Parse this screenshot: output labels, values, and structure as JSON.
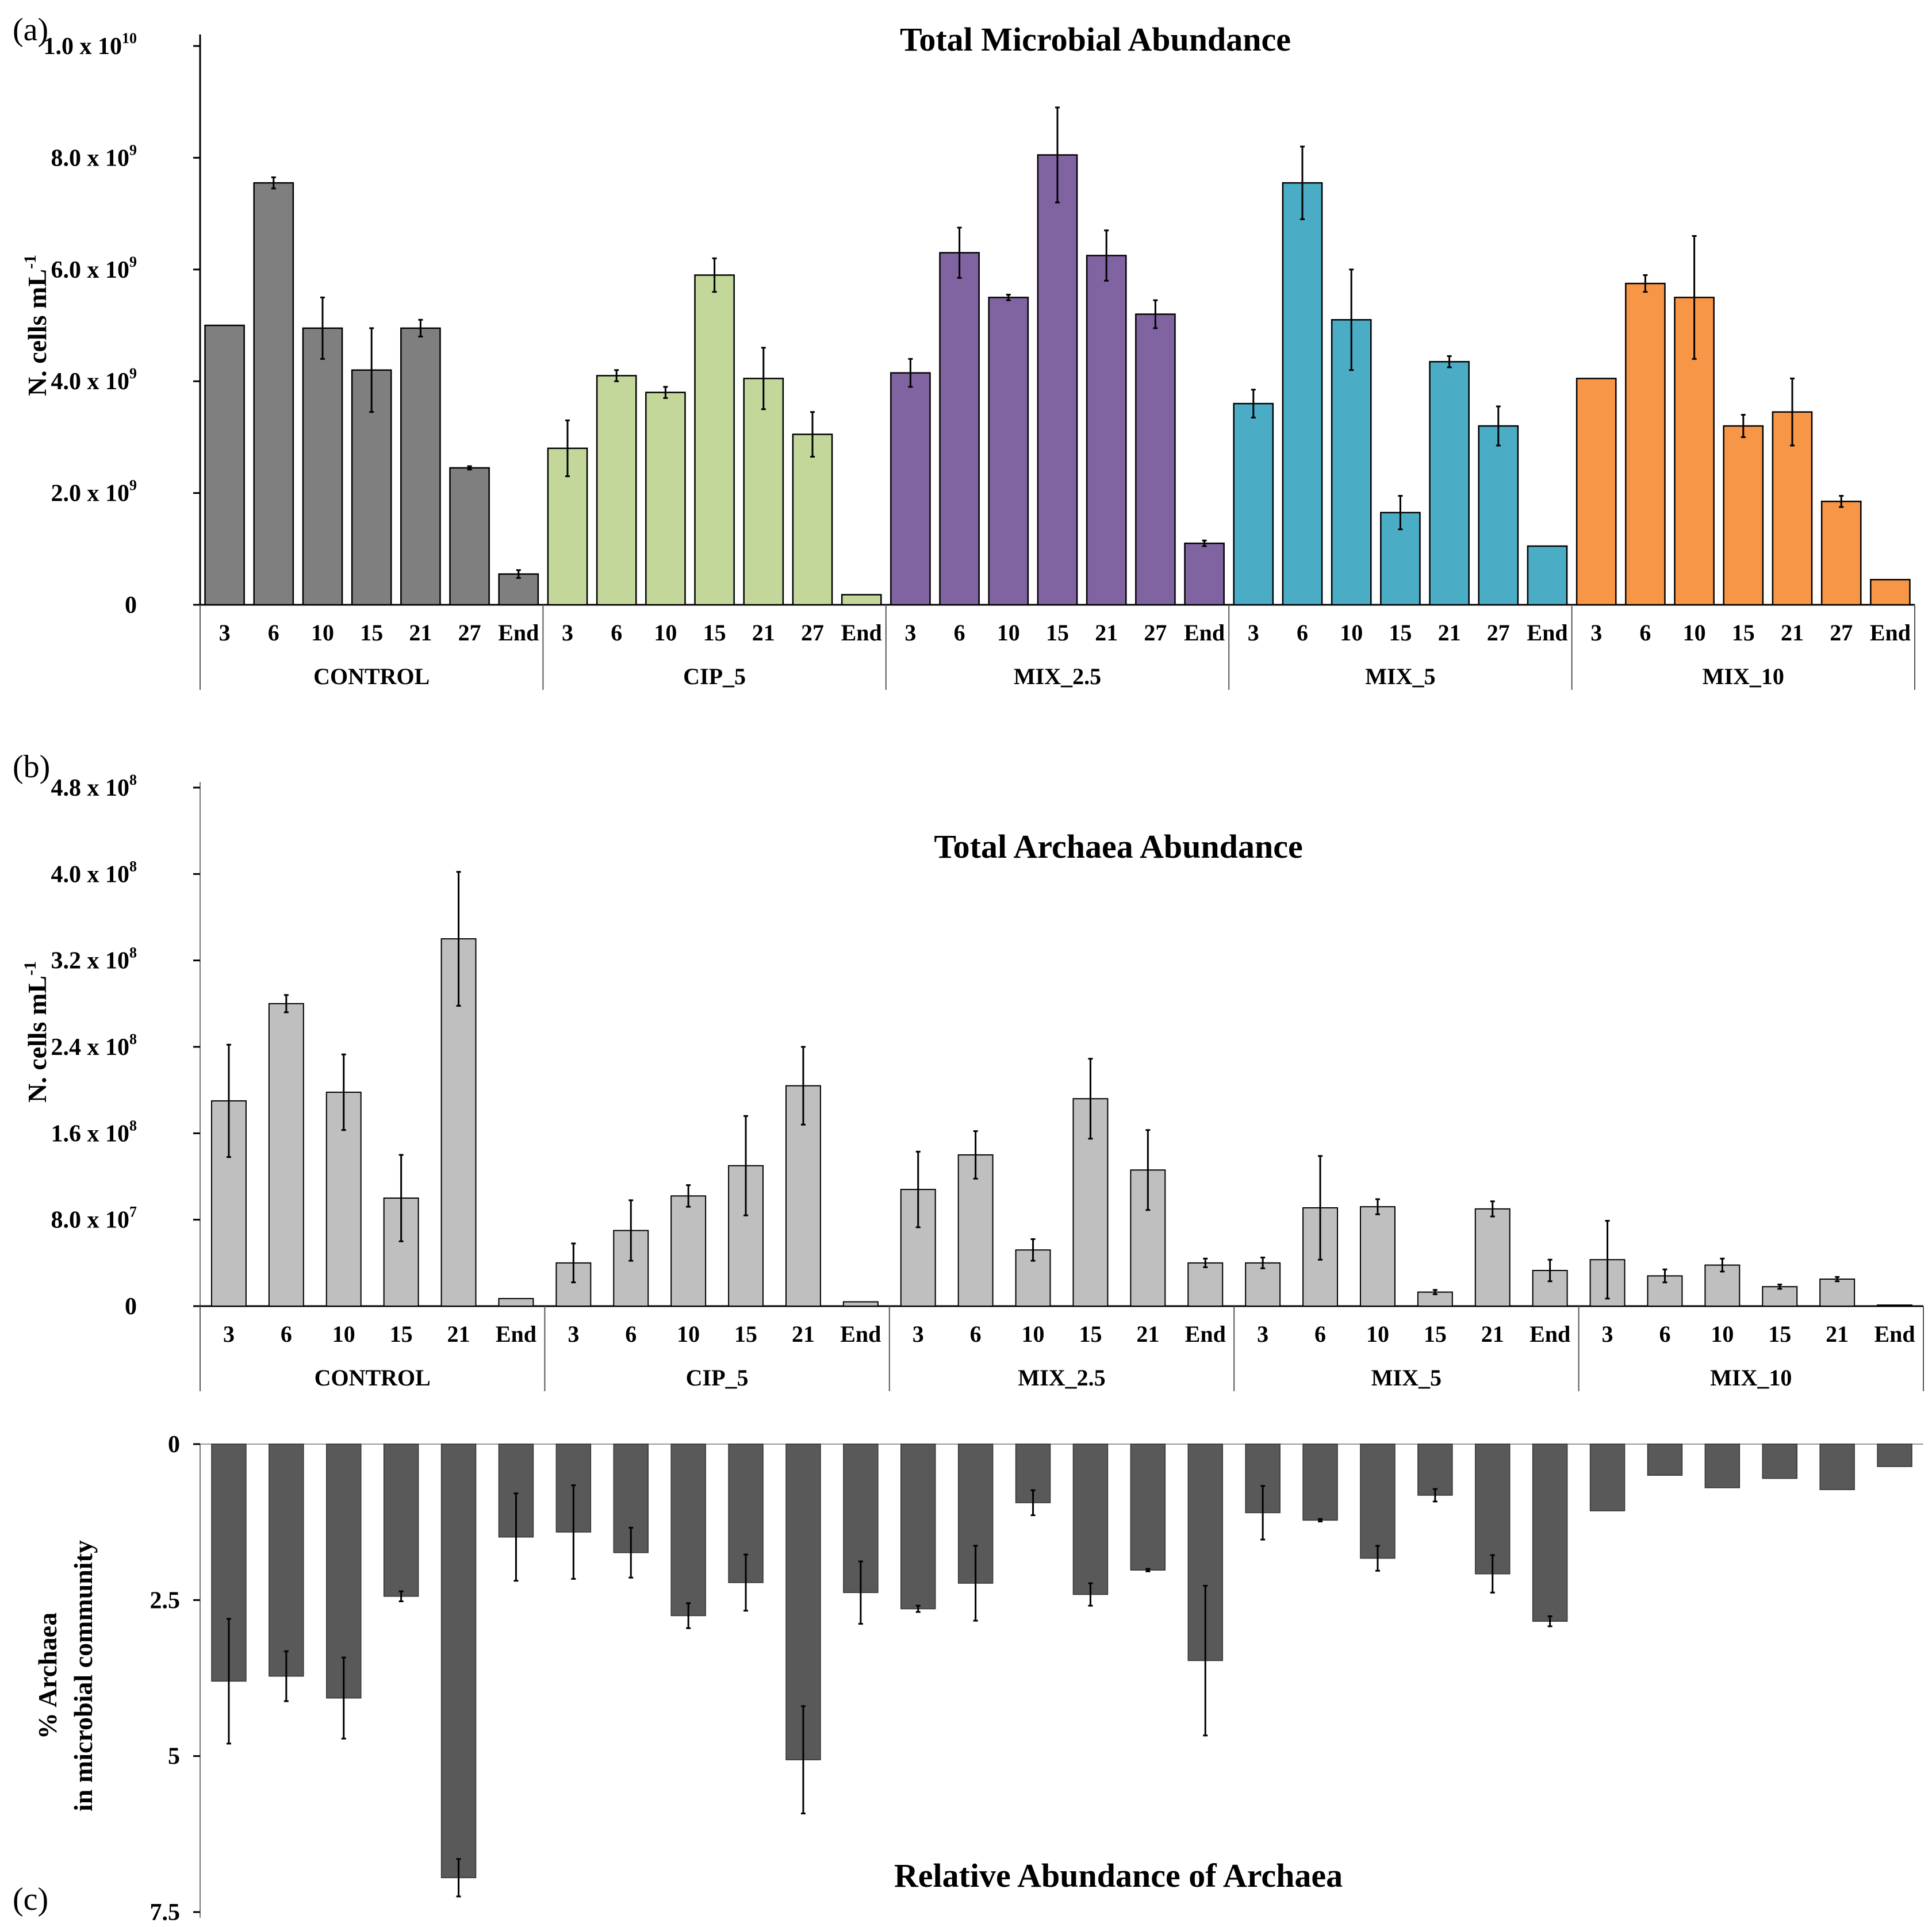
{
  "chart_data": [
    {
      "panel_label": "(a)",
      "type": "bar",
      "title": "Total Microbial Abundance",
      "ylabel": "N. cells mL-1",
      "ylabel_base": "N. cells mL",
      "ylabel_sup": "-1",
      "ylim": [
        0,
        10000000000.0
      ],
      "y_ticks": [
        {
          "value": 0,
          "text": "0",
          "sup": ""
        },
        {
          "value": 2000000000.0,
          "text": "2.0 x 10",
          "sup": "9"
        },
        {
          "value": 4000000000.0,
          "text": "4.0 x 10",
          "sup": "9"
        },
        {
          "value": 6000000000.0,
          "text": "6.0 x 10",
          "sup": "9"
        },
        {
          "value": 8000000000.0,
          "text": "8.0 x 10",
          "sup": "9"
        },
        {
          "value": 10000000000.0,
          "text": "1.0 x 10",
          "sup": "10"
        }
      ],
      "groups": [
        {
          "name": "CONTROL",
          "color": "#7f7f7f",
          "categories": [
            "3",
            "6",
            "10",
            "15",
            "21",
            "27",
            "End"
          ],
          "values": [
            5000000000.0,
            7550000000.0,
            4950000000.0,
            4200000000.0,
            4950000000.0,
            2450000000.0,
            550000000.0
          ],
          "errors": [
            0.0,
            100000000.0,
            550000000.0,
            750000000.0,
            150000000.0,
            30000000.0,
            70000000.0
          ]
        },
        {
          "name": "CIP_5",
          "color": "#c4d79b",
          "categories": [
            "3",
            "6",
            "10",
            "15",
            "21",
            "27",
            "End"
          ],
          "values": [
            2800000000.0,
            4100000000.0,
            3800000000.0,
            5900000000.0,
            4050000000.0,
            3050000000.0,
            180000000.0
          ],
          "errors": [
            500000000.0,
            100000000.0,
            100000000.0,
            300000000.0,
            550000000.0,
            400000000.0,
            0.0
          ]
        },
        {
          "name": "MIX_2.5",
          "color": "#8064a2",
          "categories": [
            "3",
            "6",
            "10",
            "15",
            "21",
            "27",
            "End"
          ],
          "values": [
            4150000000.0,
            6300000000.0,
            5500000000.0,
            8050000000.0,
            6250000000.0,
            5200000000.0,
            1100000000.0
          ],
          "errors": [
            250000000.0,
            450000000.0,
            50000000.0,
            850000000.0,
            450000000.0,
            250000000.0,
            50000000.0
          ]
        },
        {
          "name": "MIX_5",
          "color": "#4bacc6",
          "categories": [
            "3",
            "6",
            "10",
            "15",
            "21",
            "27",
            "End"
          ],
          "values": [
            3600000000.0,
            7550000000.0,
            5100000000.0,
            1650000000.0,
            4350000000.0,
            3200000000.0,
            1050000000.0
          ],
          "errors": [
            250000000.0,
            650000000.0,
            900000000.0,
            300000000.0,
            100000000.0,
            350000000.0,
            0.0
          ]
        },
        {
          "name": "MIX_10",
          "color": "#f79646",
          "categories": [
            "3",
            "6",
            "10",
            "15",
            "21",
            "27",
            "End"
          ],
          "values": [
            4050000000.0,
            5750000000.0,
            5500000000.0,
            3200000000.0,
            3450000000.0,
            1850000000.0,
            450000000.0
          ],
          "errors": [
            0.0,
            150000000.0,
            1100000000.0,
            200000000.0,
            600000000.0,
            100000000.0,
            0.0
          ]
        }
      ]
    },
    {
      "panel_label": "(b)",
      "type": "bar",
      "title": "Total Archaea Abundance",
      "ylabel": "N. cells mL-1",
      "ylabel_base": "N. cells mL",
      "ylabel_sup": "-1",
      "ylim": [
        0,
        480000000.0
      ],
      "y_ticks": [
        {
          "value": 0,
          "text": "0",
          "sup": ""
        },
        {
          "value": 80000000.0,
          "text": "8.0 x 10",
          "sup": "7"
        },
        {
          "value": 160000000.0,
          "text": "1.6 x 10",
          "sup": "8"
        },
        {
          "value": 240000000.0,
          "text": "2.4 x 10",
          "sup": "8"
        },
        {
          "value": 320000000.0,
          "text": "3.2 x 10",
          "sup": "8"
        },
        {
          "value": 400000000.0,
          "text": "4.0 x 10",
          "sup": "8"
        },
        {
          "value": 480000000.0,
          "text": "4.8 x 10",
          "sup": "8"
        }
      ],
      "bar_color": "#bfbfbf",
      "groups": [
        {
          "name": "CONTROL",
          "categories": [
            "3",
            "6",
            "10",
            "15",
            "21",
            "End"
          ],
          "values": [
            190000000.0,
            280000000.0,
            198000000.0,
            100000000.0,
            340000000.0,
            7000000.0
          ],
          "errors": [
            52000000.0,
            8000000.0,
            35000000.0,
            40000000.0,
            62000000.0,
            0.0
          ]
        },
        {
          "name": "CIP_5",
          "categories": [
            "3",
            "6",
            "10",
            "15",
            "21",
            "End"
          ],
          "values": [
            40000000.0,
            70000000.0,
            102000000.0,
            130000000.0,
            204000000.0,
            4000000.0
          ],
          "errors": [
            18000000.0,
            28000000.0,
            10000000.0,
            46000000.0,
            36000000.0,
            0.0
          ]
        },
        {
          "name": "MIX_2.5",
          "categories": [
            "3",
            "6",
            "10",
            "15",
            "21",
            "End"
          ],
          "values": [
            108000000.0,
            140000000.0,
            52000000.0,
            192000000.0,
            126000000.0,
            40000000.0
          ],
          "errors": [
            35000000.0,
            22000000.0,
            10000000.0,
            37000000.0,
            37000000.0,
            4000000.0
          ],
          "below_tick_err": [
            false,
            false,
            false,
            false,
            false,
            false
          ]
        },
        {
          "name": "MIX_5",
          "categories": [
            "3",
            "6",
            "10",
            "15",
            "21",
            "End"
          ],
          "values": [
            40000000.0,
            91000000.0,
            92000000.0,
            13000000.0,
            90000000.0,
            33000000.0
          ],
          "errors": [
            5000000.0,
            48000000.0,
            7000000.0,
            2000000.0,
            7000000.0,
            10000000.0
          ]
        },
        {
          "name": "MIX_10",
          "categories": [
            "3",
            "6",
            "10",
            "15",
            "21",
            "End"
          ],
          "values": [
            43000000.0,
            28000000.0,
            38000000.0,
            18000000.0,
            25000000.0,
            1000000.0
          ],
          "errors": [
            36000000.0,
            6000000.0,
            6000000.0,
            2000000.0,
            2000000.0,
            0.0
          ]
        }
      ]
    },
    {
      "panel_label": "(c)",
      "type": "bar",
      "orientation": "downward",
      "title": "Relative Abundance of Archaea",
      "ylabel": "% Archaea in microbial community",
      "ylabel_lines": [
        "% Archaea",
        "in microbial community"
      ],
      "ylim": [
        0,
        7.5
      ],
      "y_ticks": [
        {
          "value": 0,
          "text": "0"
        },
        {
          "value": 2.5,
          "text": "2.5"
        },
        {
          "value": 5,
          "text": "5"
        },
        {
          "value": 7.5,
          "text": "7.5"
        }
      ],
      "bar_color": "#595959",
      "groups": [
        {
          "name": "CONTROL",
          "values": [
            3.8,
            3.72,
            4.07,
            2.44,
            6.95,
            1.49
          ],
          "errors": [
            1.0,
            0.4,
            0.65,
            0.08,
            0.3,
            0.7
          ]
        },
        {
          "name": "CIP_5",
          "values": [
            1.41,
            1.74,
            2.75,
            2.22,
            5.06,
            2.38
          ],
          "errors": [
            0.75,
            0.4,
            0.2,
            0.45,
            0.86,
            0.5
          ]
        },
        {
          "name": "MIX_2.5",
          "values": [
            2.64,
            2.23,
            0.94,
            2.41,
            2.02,
            3.47
          ],
          "errors": [
            0.05,
            0.6,
            0.2,
            0.18,
            0.02,
            1.2
          ]
        },
        {
          "name": "MIX_5",
          "values": [
            1.1,
            1.22,
            1.83,
            0.82,
            2.08,
            2.84
          ],
          "errors": [
            0.43,
            0.02,
            0.2,
            0.1,
            0.3,
            0.08
          ]
        },
        {
          "name": "MIX_10",
          "values": [
            1.07,
            0.5,
            0.7,
            0.55,
            0.73,
            0.36
          ],
          "errors": [
            0.0,
            0.0,
            0.0,
            0.0,
            0.0,
            0.0
          ]
        }
      ]
    }
  ]
}
